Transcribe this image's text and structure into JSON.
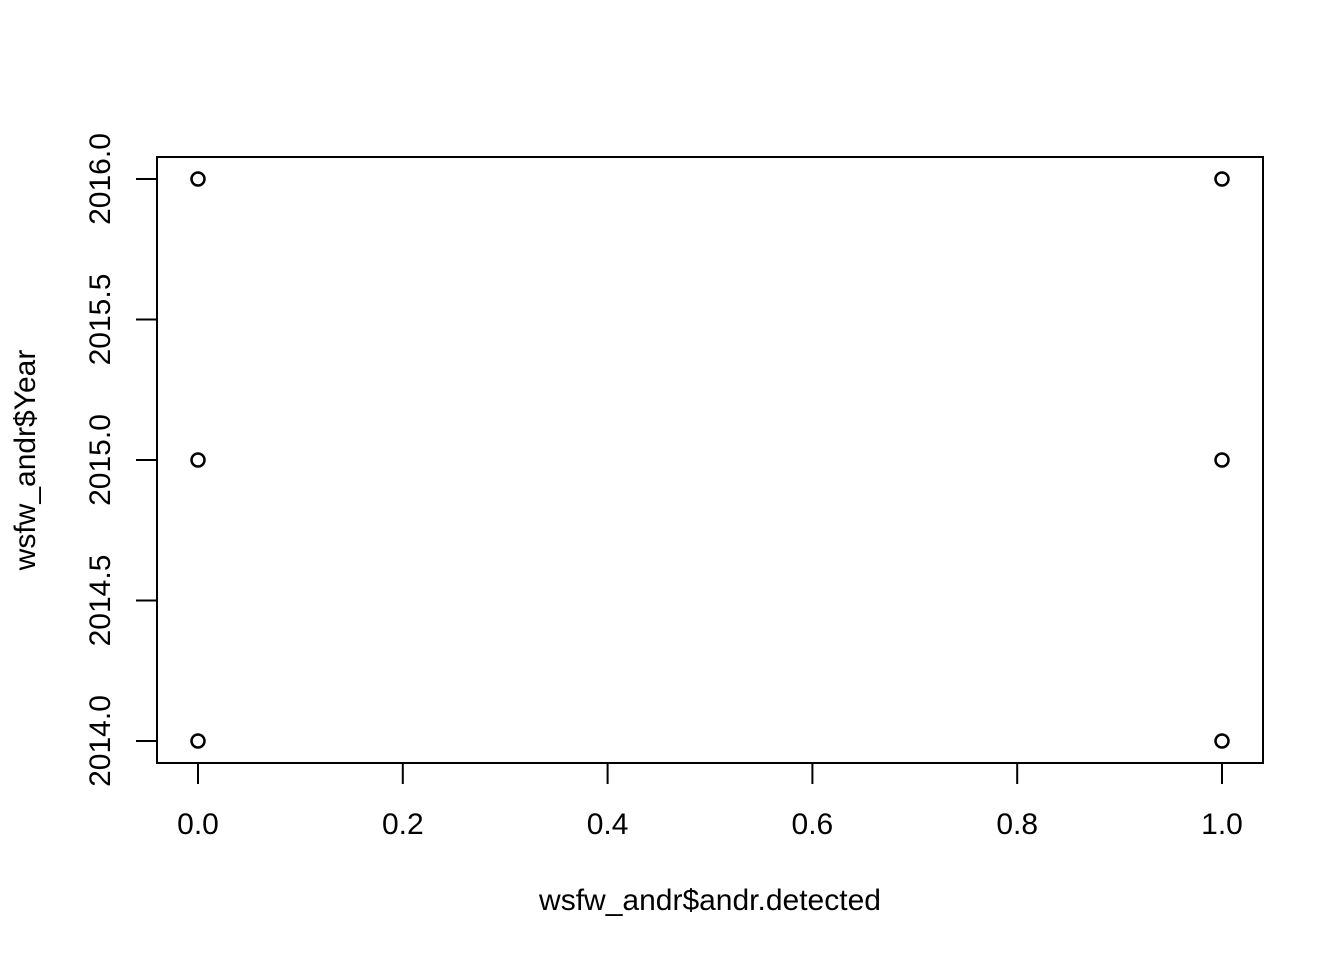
{
  "chart_data": {
    "type": "scatter",
    "title": "",
    "xlabel": "wsfw_andr$andr.detected",
    "ylabel": "wsfw_andr$Year",
    "xlim": [
      0.0,
      1.0
    ],
    "ylim": [
      2014.0,
      2016.0
    ],
    "x_ticks": [
      "0.0",
      "0.2",
      "0.4",
      "0.6",
      "0.8",
      "1.0"
    ],
    "y_ticks": [
      "2014.0",
      "2014.5",
      "2015.0",
      "2015.5",
      "2016.0"
    ],
    "grid": false,
    "marker": "open-circle",
    "points": [
      {
        "x": 0,
        "y": 2016
      },
      {
        "x": 0,
        "y": 2015
      },
      {
        "x": 0,
        "y": 2014
      },
      {
        "x": 1,
        "y": 2016
      },
      {
        "x": 1,
        "y": 2015
      },
      {
        "x": 1,
        "y": 2014
      }
    ]
  }
}
